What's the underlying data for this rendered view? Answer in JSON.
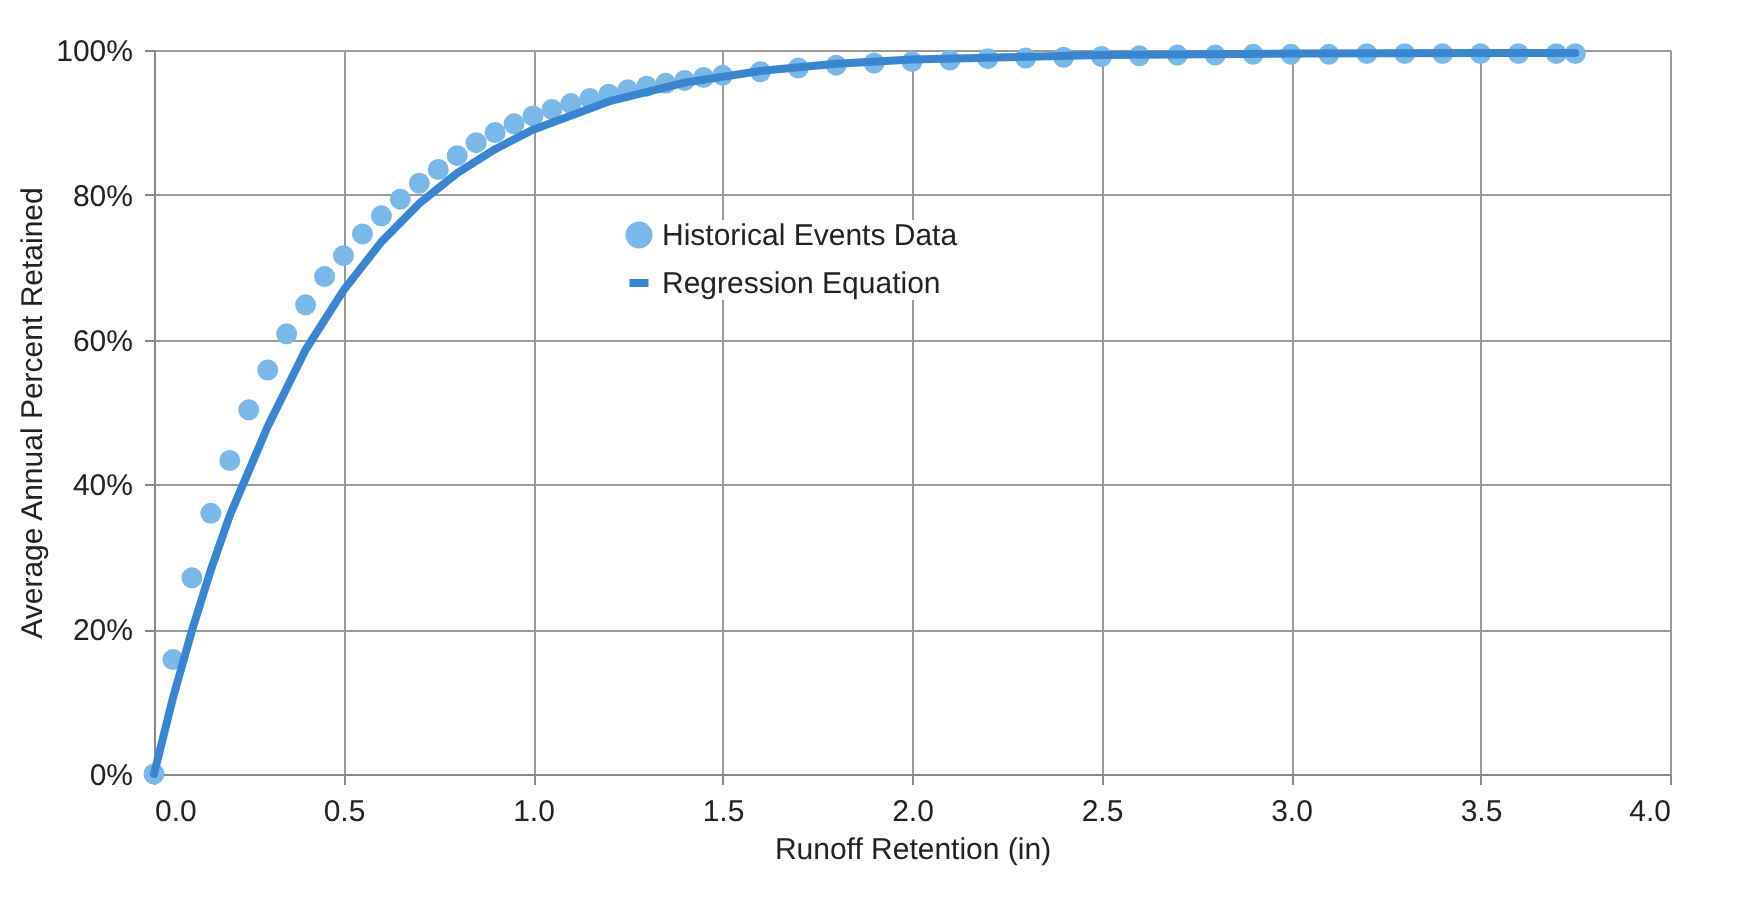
{
  "chart_data": {
    "type": "scatter",
    "xlabel": "Runoff Retention (in)",
    "ylabel": "Average Annual Percent Retained",
    "xlim": [
      0,
      4
    ],
    "ylim": [
      0,
      100
    ],
    "xticks": [
      {
        "value": 0,
        "label": "0.0"
      },
      0.5,
      {
        "value": 1,
        "label": "1.0"
      },
      1.5,
      {
        "value": 2,
        "label": "2.0"
      },
      2.5,
      {
        "value": 3,
        "label": "3.0"
      },
      3.5,
      {
        "value": 4,
        "label": "4.0"
      }
    ],
    "yticks": [
      {
        "value": 0,
        "label": "0%"
      },
      {
        "value": 20,
        "label": "20%"
      },
      {
        "value": 40,
        "label": "40%"
      },
      {
        "value": 60,
        "label": "60%"
      },
      {
        "value": 80,
        "label": "80%"
      },
      {
        "value": 100,
        "label": "100%"
      }
    ],
    "grid": true,
    "legend": "center",
    "series": [
      {
        "name": "Historical Events Data",
        "color": "#7ab8e8",
        "marker": "circle",
        "x": [
          0,
          0.05,
          0.1,
          0.15,
          0.2,
          0.25,
          0.3,
          0.35,
          0.4,
          0.45,
          0.5,
          0.55,
          0.6,
          0.65,
          0.7,
          0.75,
          0.8,
          0.85,
          0.9,
          0.95,
          1.0,
          1.05,
          1.1,
          1.15,
          1.2,
          1.25,
          1.3,
          1.35,
          1.4,
          1.45,
          1.5,
          1.6,
          1.7,
          1.8,
          1.9,
          2.0,
          2.1,
          2.2,
          2.3,
          2.4,
          2.5,
          2.6,
          2.7,
          2.8,
          2.9,
          3.0,
          3.1,
          3.2,
          3.3,
          3.4,
          3.5,
          3.6,
          3.7,
          3.75
        ],
        "values": [
          0,
          15.8,
          27.1,
          36.0,
          43.3,
          50.3,
          55.8,
          60.8,
          64.8,
          68.7,
          71.6,
          74.6,
          77.1,
          79.4,
          81.6,
          83.5,
          85.4,
          87.2,
          88.6,
          89.8,
          90.9,
          91.8,
          92.6,
          93.3,
          93.9,
          94.5,
          95.0,
          95.4,
          95.8,
          96.2,
          96.5,
          97.0,
          97.5,
          97.9,
          98.2,
          98.4,
          98.6,
          98.8,
          98.9,
          99.0,
          99.1,
          99.2,
          99.3,
          99.3,
          99.4,
          99.4,
          99.4,
          99.5,
          99.5,
          99.5,
          99.5,
          99.5,
          99.5,
          99.5
        ]
      },
      {
        "name": "Regression Equation",
        "color": "#3a85d0",
        "type": "line",
        "line_style": "solid",
        "marker": "none",
        "x": [
          0,
          0.05,
          0.1,
          0.15,
          0.2,
          0.3,
          0.4,
          0.5,
          0.6,
          0.7,
          0.8,
          0.9,
          1.0,
          1.2,
          1.4,
          1.6,
          1.8,
          2.0,
          2.5,
          3.0,
          3.5,
          3.75
        ],
        "values": [
          0,
          10.5,
          19.8,
          28.2,
          35.7,
          48.0,
          58.6,
          66.8,
          73.5,
          78.8,
          83.0,
          86.3,
          89.0,
          92.9,
          95.5,
          97.1,
          98.1,
          98.7,
          99.3,
          99.5,
          99.6,
          99.6
        ]
      }
    ]
  }
}
